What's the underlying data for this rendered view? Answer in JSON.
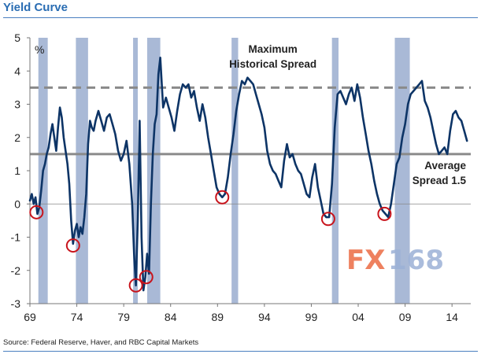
{
  "header": {
    "title": "Yield Curve"
  },
  "footer": {
    "source": "Source: Federal Reserve, Haver, and RBC Capital Markets"
  },
  "watermark": {
    "fx": "FX",
    "num": "168",
    "fx_color": "#e8572a",
    "num_color": "#9bb0d6"
  },
  "chart_data": {
    "type": "line",
    "title": "Yield Curve",
    "ylabel": "%",
    "xlabel": "",
    "xlim": [
      1969,
      2016
    ],
    "ylim": [
      -3,
      5
    ],
    "x_ticks": [
      1969,
      1974,
      1979,
      1984,
      1989,
      1994,
      1999,
      2004,
      2009,
      2014
    ],
    "x_tick_labels": [
      "69",
      "74",
      "79",
      "84",
      "89",
      "94",
      "99",
      "04",
      "09",
      "14"
    ],
    "y_ticks": [
      -3,
      -2,
      -1,
      0,
      1,
      2,
      3,
      4,
      5
    ],
    "y_tick_labels": [
      "-3",
      "-2",
      "-1",
      "0",
      "1",
      "2",
      "3",
      "4",
      "5"
    ],
    "grid": false,
    "line_color": "#0d3466",
    "recession_color": "#a9b9d6",
    "recessions": [
      [
        1969.9,
        1970.9
      ],
      [
        1973.9,
        1975.2
      ],
      [
        1980.0,
        1980.5
      ],
      [
        1981.5,
        1982.9
      ],
      [
        1990.5,
        1991.2
      ],
      [
        2001.2,
        2001.9
      ],
      [
        2007.9,
        2009.5
      ]
    ],
    "reference_lines": [
      {
        "name": "Maximum Historical Spread",
        "value": 3.5,
        "style": "dashed",
        "color": "#8a8a8a"
      },
      {
        "name": "Average Spread 1.5",
        "value": 1.5,
        "style": "solid",
        "color": "#8a8a8a"
      }
    ],
    "annotations": [
      {
        "line1": "Maximum",
        "line2": "Historical Spread",
        "x": 1994.9,
        "y": 4.55,
        "align": "center"
      },
      {
        "line1": "Average",
        "line2": "Spread 1.5",
        "x": 2015.5,
        "y": 1.05,
        "align": "end"
      }
    ],
    "inversion_markers": [
      {
        "x": 1969.7,
        "y": -0.25
      },
      {
        "x": 1973.6,
        "y": -1.25
      },
      {
        "x": 1980.3,
        "y": -2.45
      },
      {
        "x": 1981.4,
        "y": -2.2
      },
      {
        "x": 1989.5,
        "y": 0.2
      },
      {
        "x": 2000.8,
        "y": -0.45
      },
      {
        "x": 2006.8,
        "y": -0.3
      }
    ],
    "series": [
      {
        "x": [
          1969.0,
          1969.2,
          1969.4,
          1969.6,
          1969.8,
          1970.0,
          1970.2,
          1970.4,
          1970.6,
          1970.8,
          1971.0,
          1971.2,
          1971.4,
          1971.6,
          1971.8,
          1972.0,
          1972.2,
          1972.4,
          1972.6,
          1972.8,
          1973.0,
          1973.2,
          1973.4,
          1973.6,
          1973.8,
          1974.0,
          1974.2,
          1974.4,
          1974.6,
          1974.8,
          1975.0,
          1975.2,
          1975.4,
          1975.6,
          1975.8,
          1976.0,
          1976.3,
          1976.6,
          1976.9,
          1977.2,
          1977.5,
          1977.8,
          1978.1,
          1978.4,
          1978.7,
          1979.0,
          1979.3,
          1979.6,
          1979.9,
          1980.1,
          1980.3,
          1980.5,
          1980.7,
          1980.9,
          1981.1,
          1981.3,
          1981.5,
          1981.7,
          1981.9,
          1982.1,
          1982.3,
          1982.5,
          1982.7,
          1982.9,
          1983.2,
          1983.5,
          1983.8,
          1984.1,
          1984.4,
          1984.7,
          1985.0,
          1985.3,
          1985.6,
          1985.9,
          1986.2,
          1986.5,
          1986.8,
          1987.1,
          1987.4,
          1987.7,
          1988.0,
          1988.3,
          1988.6,
          1988.9,
          1989.2,
          1989.5,
          1989.8,
          1990.1,
          1990.4,
          1990.7,
          1991.0,
          1991.3,
          1991.6,
          1991.9,
          1992.2,
          1992.5,
          1992.8,
          1993.1,
          1993.4,
          1993.7,
          1994.0,
          1994.3,
          1994.6,
          1994.9,
          1995.2,
          1995.5,
          1995.8,
          1996.1,
          1996.4,
          1996.7,
          1997.0,
          1997.3,
          1997.6,
          1997.9,
          1998.2,
          1998.5,
          1998.8,
          1999.1,
          1999.4,
          1999.7,
          2000.0,
          2000.3,
          2000.6,
          2000.9,
          2001.2,
          2001.5,
          2001.8,
          2002.1,
          2002.4,
          2002.7,
          2003.0,
          2003.3,
          2003.6,
          2003.9,
          2004.2,
          2004.5,
          2004.8,
          2005.1,
          2005.4,
          2005.7,
          2006.0,
          2006.3,
          2006.6,
          2006.9,
          2007.2,
          2007.5,
          2007.8,
          2008.1,
          2008.4,
          2008.7,
          2009.0,
          2009.3,
          2009.6,
          2009.9,
          2010.2,
          2010.5,
          2010.8,
          2011.1,
          2011.4,
          2011.7,
          2012.0,
          2012.3,
          2012.6,
          2012.9,
          2013.2,
          2013.5,
          2013.8,
          2014.1,
          2014.4,
          2014.7,
          2015.0,
          2015.3,
          2015.6
        ],
        "y": [
          0.1,
          0.3,
          0.0,
          0.2,
          -0.3,
          -0.1,
          0.4,
          1.0,
          1.2,
          1.5,
          1.7,
          2.1,
          2.4,
          2.0,
          1.6,
          2.3,
          2.9,
          2.6,
          2.0,
          1.6,
          1.2,
          0.6,
          -0.5,
          -1.2,
          -0.8,
          -0.6,
          -1.0,
          -0.7,
          -0.9,
          -0.4,
          0.3,
          1.8,
          2.5,
          2.3,
          2.2,
          2.5,
          2.8,
          2.5,
          2.2,
          2.6,
          2.7,
          2.4,
          2.1,
          1.6,
          1.3,
          1.5,
          1.9,
          1.2,
          0.0,
          -1.5,
          -2.45,
          -0.5,
          2.5,
          -1.0,
          -2.6,
          -2.2,
          -1.5,
          -2.1,
          0.0,
          1.5,
          2.4,
          2.7,
          3.9,
          4.4,
          2.9,
          3.2,
          2.9,
          2.6,
          2.2,
          2.8,
          3.3,
          3.6,
          3.5,
          3.6,
          3.2,
          3.4,
          2.9,
          2.5,
          3.0,
          2.6,
          2.0,
          1.5,
          1.0,
          0.5,
          0.3,
          0.2,
          0.3,
          0.8,
          1.5,
          2.1,
          2.8,
          3.3,
          3.7,
          3.6,
          3.8,
          3.7,
          3.6,
          3.3,
          3.0,
          2.7,
          2.3,
          1.6,
          1.2,
          1.0,
          0.9,
          0.7,
          0.5,
          1.3,
          1.8,
          1.4,
          1.5,
          1.2,
          1.0,
          0.9,
          0.6,
          0.3,
          0.2,
          0.8,
          1.2,
          0.5,
          0.1,
          -0.3,
          -0.4,
          -0.4,
          0.6,
          2.3,
          3.3,
          3.4,
          3.2,
          3.0,
          3.3,
          3.5,
          3.1,
          3.6,
          3.2,
          2.6,
          2.1,
          1.6,
          1.2,
          0.7,
          0.3,
          0.0,
          -0.2,
          -0.3,
          -0.4,
          0.0,
          0.6,
          1.2,
          1.4,
          2.0,
          2.4,
          3.0,
          3.3,
          3.4,
          3.5,
          3.6,
          3.7,
          3.1,
          2.9,
          2.6,
          2.2,
          1.8,
          1.5,
          1.6,
          1.7,
          1.5,
          2.2,
          2.7,
          2.8,
          2.6,
          2.5,
          2.2,
          1.9
        ]
      }
    ]
  }
}
